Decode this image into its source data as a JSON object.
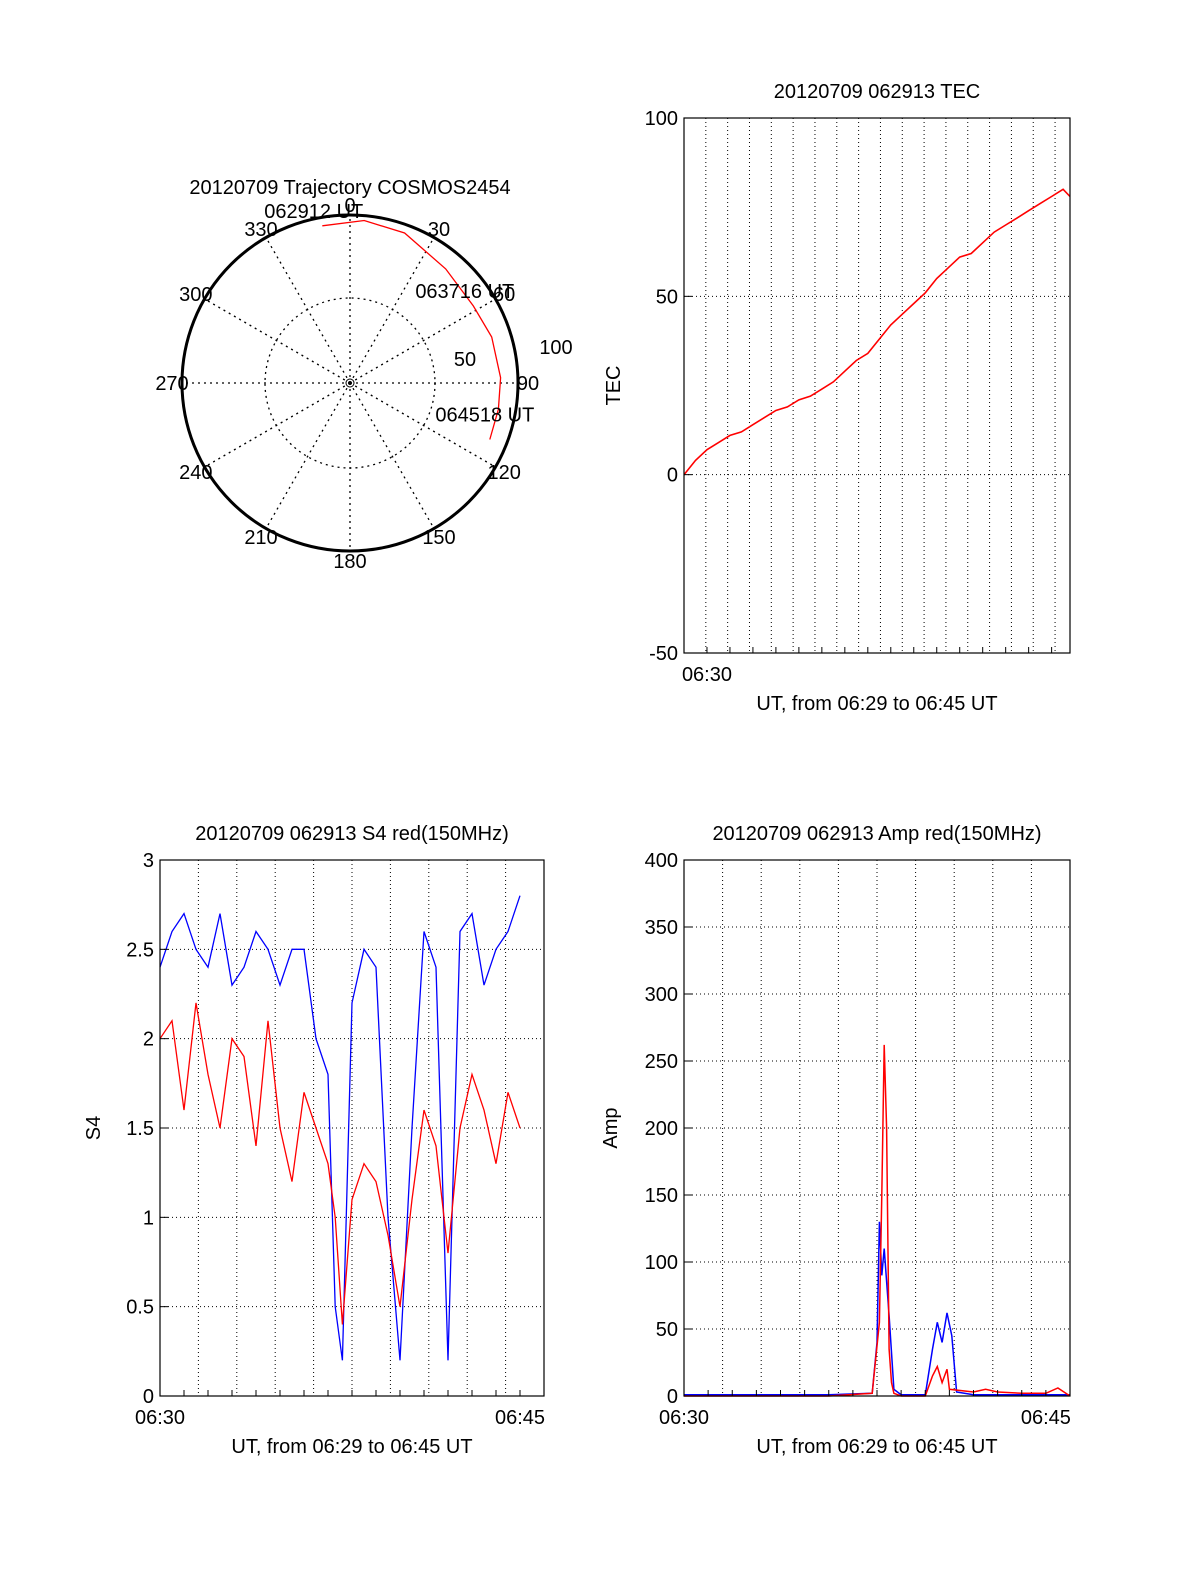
{
  "colors": {
    "red_series": "#ff0000",
    "blue_series": "#0000ff",
    "axes": "#000000",
    "grid": "#000000"
  },
  "chart_data": [
    {
      "type": "polar",
      "title": "20120709 Trajectory COSMOS2454",
      "azimuth_labels": [
        "0",
        "30",
        "60",
        "90",
        "120",
        "150",
        "180",
        "210",
        "240",
        "270",
        "300",
        "330"
      ],
      "radius_labels": [
        "50",
        "100"
      ],
      "grid": true,
      "series": [
        {
          "color": "red",
          "points": [
            {
              "az": 350,
              "zen": 90
            },
            {
              "az": 5,
              "zen": 92
            },
            {
              "az": 20,
              "zen": 90
            },
            {
              "az": 40,
              "zen": 84
            },
            {
              "az": 58,
              "zen": 82
            },
            {
              "az": 72,
              "zen": 84
            },
            {
              "az": 88,
              "zen": 85
            },
            {
              "az": 100,
              "zen": 85
            },
            {
              "az": 112,
              "zen": 85
            }
          ]
        }
      ],
      "annotations": [
        {
          "text": "062912 UT",
          "az": 350,
          "zen": 90
        },
        {
          "text": "063716 UT",
          "az": 58,
          "zen": 82
        },
        {
          "text": "064518 UT",
          "az": 108,
          "zen": 85
        }
      ]
    },
    {
      "type": "line",
      "title": "20120709 062913 TEC",
      "xlabel": "UT, from 06:29 to 06:45 UT",
      "ylabel": "TEC",
      "xlim": [
        0,
        16.8
      ],
      "ylim": [
        -50,
        100
      ],
      "xticks": [
        {
          "x": 1,
          "label": "06:30"
        }
      ],
      "yticks": [
        -50,
        0,
        50,
        100
      ],
      "grid": true,
      "series": [
        {
          "color": "red",
          "x": [
            0,
            0.5,
            1,
            1.5,
            2,
            2.5,
            3,
            3.5,
            4,
            4.5,
            5,
            5.5,
            6,
            6.5,
            7,
            7.5,
            8,
            8.5,
            9,
            9.5,
            10,
            10.5,
            11,
            11.5,
            12,
            12.5,
            13,
            13.5,
            14,
            14.5,
            15,
            15.5,
            16,
            16.5,
            16.8
          ],
          "y": [
            0,
            4,
            7,
            9,
            11,
            12,
            14,
            16,
            18,
            19,
            21,
            22,
            24,
            26,
            29,
            32,
            34,
            38,
            42,
            45,
            48,
            51,
            55,
            58,
            61,
            62,
            65,
            68,
            70,
            72,
            74,
            76,
            78,
            80,
            78
          ]
        }
      ]
    },
    {
      "type": "line",
      "title": "20120709 062913 S4 red(150MHz)",
      "xlabel": "UT, from 06:29 to 06:45 UT",
      "ylabel": "S4",
      "xlim": [
        0,
        16
      ],
      "ylim": [
        0,
        3
      ],
      "xticks": [
        {
          "x": 0,
          "label": "06:30"
        },
        {
          "x": 15,
          "label": "06:45"
        }
      ],
      "yticks": [
        0,
        0.5,
        1,
        1.5,
        2,
        2.5,
        3
      ],
      "grid": true,
      "series": [
        {
          "color": "blue",
          "x": [
            0,
            0.5,
            1,
            1.5,
            2,
            2.5,
            3,
            3.5,
            4,
            4.5,
            5,
            5.5,
            6,
            6.5,
            7,
            7.3,
            7.6,
            8,
            8.5,
            9,
            9.5,
            10,
            10.5,
            11,
            11.5,
            12,
            12.5,
            13,
            13.5,
            14,
            14.5,
            15
          ],
          "y": [
            2.4,
            2.6,
            2.7,
            2.5,
            2.4,
            2.7,
            2.3,
            2.4,
            2.6,
            2.5,
            2.3,
            2.5,
            2.5,
            2.0,
            1.8,
            0.5,
            0.2,
            2.2,
            2.5,
            2.4,
            1.0,
            0.2,
            1.5,
            2.6,
            2.4,
            0.2,
            2.6,
            2.7,
            2.3,
            2.5,
            2.6,
            2.8
          ]
        },
        {
          "color": "red",
          "x": [
            0,
            0.5,
            1,
            1.5,
            2,
            2.5,
            3,
            3.5,
            4,
            4.5,
            5,
            5.5,
            6,
            6.5,
            7,
            7.3,
            7.6,
            8,
            8.5,
            9,
            9.5,
            10,
            10.5,
            11,
            11.5,
            12,
            12.5,
            13,
            13.5,
            14,
            14.5,
            15
          ],
          "y": [
            2.0,
            2.1,
            1.6,
            2.2,
            1.8,
            1.5,
            2.0,
            1.9,
            1.4,
            2.1,
            1.5,
            1.2,
            1.7,
            1.5,
            1.3,
            1.0,
            0.4,
            1.1,
            1.3,
            1.2,
            0.9,
            0.5,
            1.1,
            1.6,
            1.4,
            0.8,
            1.5,
            1.8,
            1.6,
            1.3,
            1.7,
            1.5
          ]
        }
      ]
    },
    {
      "type": "line",
      "title": "20120709 062913 Amp red(150MHz)",
      "xlabel": "UT, from 06:29 to 06:45 UT",
      "ylabel": "Amp",
      "xlim": [
        0,
        16
      ],
      "ylim": [
        0,
        400
      ],
      "xticks": [
        {
          "x": 0,
          "label": "06:30"
        },
        {
          "x": 15,
          "label": "06:45"
        }
      ],
      "yticks": [
        0,
        50,
        100,
        150,
        200,
        250,
        300,
        350,
        400
      ],
      "grid": true,
      "series": [
        {
          "color": "blue",
          "x": [
            0,
            2,
            4,
            6,
            7.8,
            8.0,
            8.1,
            8.2,
            8.3,
            8.5,
            8.7,
            9,
            10,
            10.3,
            10.5,
            10.7,
            10.9,
            11.1,
            11.3,
            12,
            14,
            16
          ],
          "y": [
            1,
            1,
            1,
            1,
            2,
            40,
            130,
            90,
            110,
            60,
            5,
            1,
            1,
            35,
            55,
            40,
            62,
            45,
            3,
            1,
            1,
            1
          ]
        },
        {
          "color": "red",
          "x": [
            0,
            2,
            4,
            6,
            7.8,
            8.1,
            8.2,
            8.3,
            8.4,
            8.5,
            8.6,
            8.7,
            9,
            10,
            10.3,
            10.5,
            10.7,
            10.9,
            11,
            12,
            12.5,
            13,
            14,
            15,
            15.5,
            16
          ],
          "y": [
            0,
            0,
            0,
            0,
            2,
            55,
            150,
            262,
            200,
            35,
            10,
            2,
            0,
            0,
            15,
            22,
            10,
            20,
            5,
            3,
            5,
            3,
            2,
            2,
            6,
            0
          ]
        }
      ]
    }
  ]
}
